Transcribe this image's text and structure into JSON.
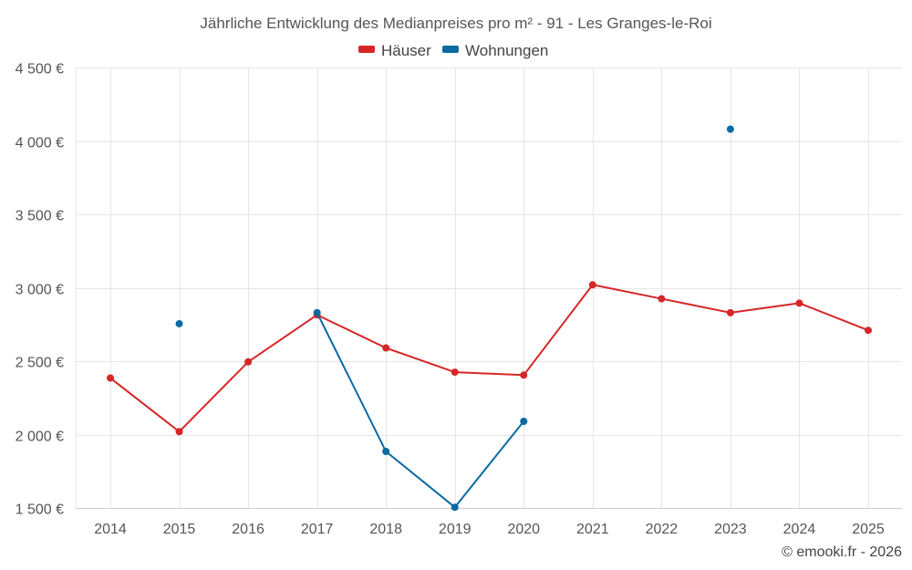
{
  "chart_data": {
    "type": "line",
    "title": "Jährliche Entwicklung des Medianpreises pro m² - 91 - Les Granges-le-Roi",
    "categories": [
      "2014",
      "2015",
      "2016",
      "2017",
      "2018",
      "2019",
      "2020",
      "2021",
      "2022",
      "2023",
      "2024",
      "2025"
    ],
    "y_ticks": [
      1500,
      2000,
      2500,
      3000,
      3500,
      4000,
      4500
    ],
    "y_tick_labels": [
      "1 500 €",
      "2 000 €",
      "2 500 €",
      "3 000 €",
      "3 500 €",
      "4 000 €",
      "4 500 €"
    ],
    "ylim": [
      1500,
      4500
    ],
    "grid": true,
    "legend_position": "top-center",
    "series": [
      {
        "name": "Häuser",
        "color": "#d62728",
        "values": [
          2385,
          2020,
          2495,
          2815,
          2590,
          2425,
          2405,
          3020,
          2925,
          2830,
          2895,
          2710
        ]
      },
      {
        "name": "Wohnungen",
        "color": "#0a6aa1",
        "values": [
          null,
          2755,
          null,
          2830,
          1885,
          1505,
          2090,
          null,
          null,
          4080,
          null,
          null
        ]
      }
    ],
    "credit": "© emooki.fr - 2026"
  }
}
